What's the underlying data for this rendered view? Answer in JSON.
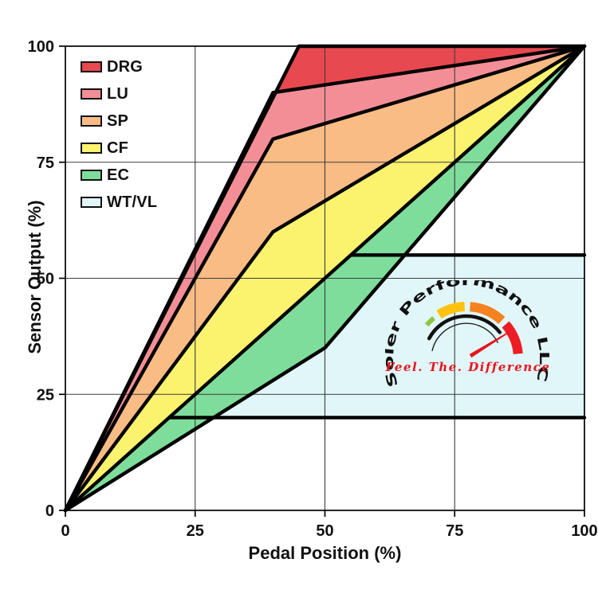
{
  "axes": {
    "x_label": "Pedal Position (%)",
    "y_label": "Sensor Output (%)"
  },
  "legend": {
    "items": [
      {
        "label": "DRG",
        "color": "#e8484f"
      },
      {
        "label": "LU",
        "color": "#f48e96"
      },
      {
        "label": "SP",
        "color": "#f9bc84"
      },
      {
        "label": "CF",
        "color": "#fbf26e"
      },
      {
        "label": "EC",
        "color": "#7edd9b"
      },
      {
        "label": "WT/VL",
        "color": "#e1f6f8"
      }
    ]
  },
  "chart_data": {
    "type": "area",
    "title": "",
    "xlabel": "Pedal Position (%)",
    "ylabel": "Sensor Output (%)",
    "xlim": [
      0,
      100
    ],
    "ylim": [
      0,
      100
    ],
    "xticks": [
      0,
      25,
      50,
      75,
      100
    ],
    "yticks": [
      0,
      25,
      50,
      75,
      100
    ],
    "grid": true,
    "legend_position": "top-left",
    "line_color": "#000000",
    "grid_color": "#3d3d3d",
    "series": [
      {
        "name": "DRG",
        "color": "#e8484f",
        "points": [
          [
            0,
            0
          ],
          [
            45,
            100
          ],
          [
            100,
            100
          ]
        ]
      },
      {
        "name": "LU",
        "color": "#f48e96",
        "points": [
          [
            0,
            0
          ],
          [
            40,
            90
          ],
          [
            100,
            100
          ]
        ]
      },
      {
        "name": "SP",
        "color": "#f9bc84",
        "points": [
          [
            0,
            0
          ],
          [
            40,
            80
          ],
          [
            100,
            100
          ]
        ]
      },
      {
        "name": "CF",
        "color": "#fbf26e",
        "points": [
          [
            0,
            0
          ],
          [
            40,
            60
          ],
          [
            100,
            100
          ]
        ]
      },
      {
        "name": "EC",
        "color": "#7edd9b",
        "points": [
          [
            0,
            0
          ],
          [
            100,
            100
          ]
        ]
      },
      {
        "name": "WT",
        "color": "#e1f6f8",
        "points": [
          [
            0,
            0
          ],
          [
            50,
            35
          ],
          [
            100,
            100
          ]
        ]
      }
    ],
    "caps": [
      {
        "name": "VL-cap",
        "y": 20,
        "x_start": 20,
        "x_end": 100
      },
      {
        "name": "WT-cap",
        "y": 55,
        "x_start": 55,
        "x_end": 100
      }
    ],
    "band": {
      "low": 20,
      "high": 55,
      "color": "#e1f6f8"
    }
  },
  "logo": {
    "name": "Soler Performance LLC",
    "tagline": "Feel. The. Difference",
    "tagline_color": "#e8151d",
    "gauge_colors": {
      "green": "#8dc63f",
      "yellow": "#ffc20e",
      "orange": "#f58220",
      "red": "#ed1c24"
    }
  }
}
